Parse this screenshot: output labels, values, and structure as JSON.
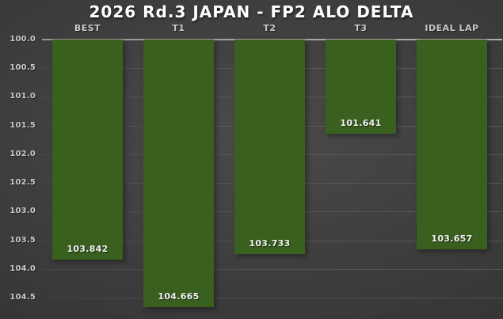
{
  "chart_data": {
    "type": "bar",
    "title": "2026 Rd.3 JAPAN - FP2 ALO DELTA",
    "categories": [
      "BEST",
      "T1",
      "T2",
      "T3",
      "IDEAL LAP"
    ],
    "values": [
      103.842,
      104.665,
      103.733,
      101.641,
      103.657
    ],
    "value_labels": [
      "103.842",
      "104.665",
      "103.733",
      "101.641",
      "103.657"
    ],
    "xlabel": "",
    "ylabel": "",
    "y_axis": {
      "min": 100.0,
      "max": 104.87,
      "tick_step": 0.5,
      "inverted": true,
      "tick_labels": [
        "100.0",
        "100.5",
        "101.0",
        "101.5",
        "102.0",
        "102.5",
        "103.0",
        "103.5",
        "104.0",
        "104.5"
      ],
      "tick_values": [
        100.0,
        100.5,
        101.0,
        101.5,
        102.0,
        102.5,
        103.0,
        103.5,
        104.0,
        104.5
      ]
    },
    "grid": true,
    "legend": null,
    "bars_grow_downward_from_axis_top": true,
    "colors": {
      "bar_fill": "#39601f",
      "value_label": "#f2f2f2",
      "axis_text": "#c9c9c9",
      "title_text": "#ffffff",
      "background_center": "#4a4a4a",
      "background_edge": "#2a2a2a",
      "axis_top_line": "#9a9a9a"
    }
  }
}
